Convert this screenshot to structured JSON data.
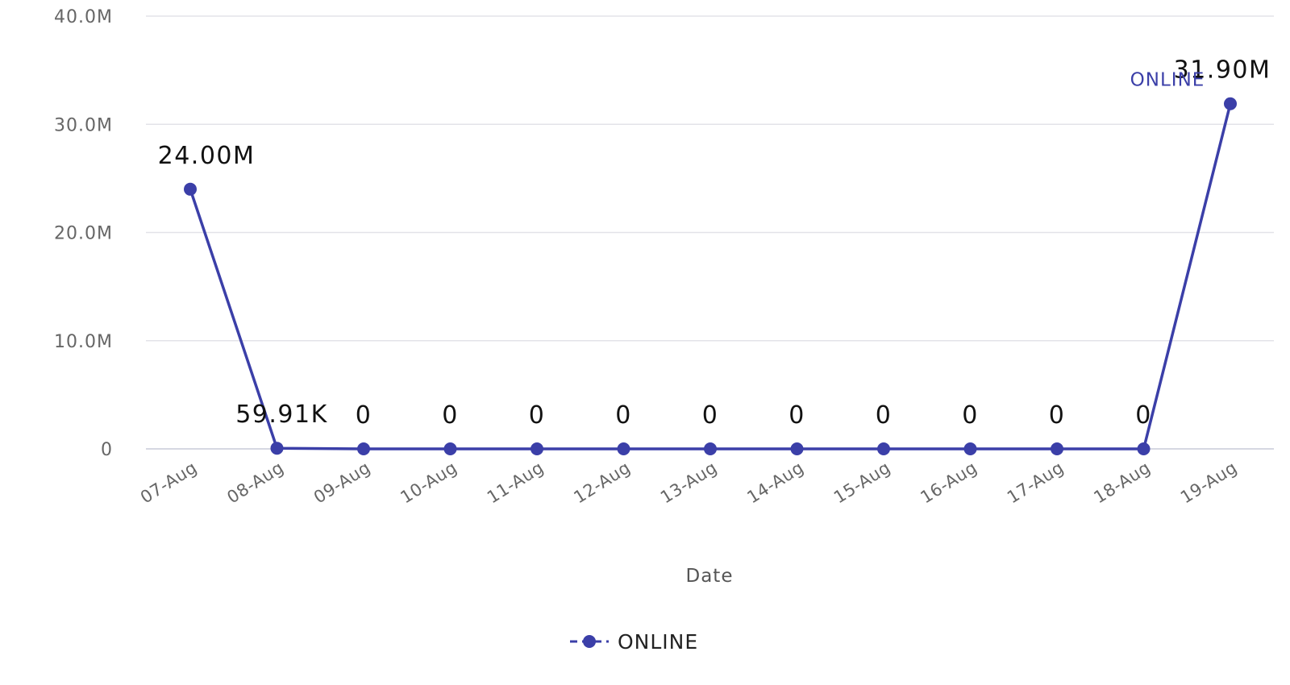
{
  "colors": {
    "series": "#3b3fa8",
    "grid": "#e3e3e8",
    "tick_text": "#666666",
    "label_text": "#111111"
  },
  "chart_data": {
    "type": "line",
    "xlabel": "Date",
    "ylabel": "",
    "ylim": [
      0,
      40000000
    ],
    "y_ticks": [
      {
        "value": 0,
        "label": "0"
      },
      {
        "value": 10000000,
        "label": "10.0M"
      },
      {
        "value": 20000000,
        "label": "20.0M"
      },
      {
        "value": 30000000,
        "label": "30.0M"
      },
      {
        "value": 40000000,
        "label": "40.0M"
      }
    ],
    "categories": [
      "07-Aug",
      "08-Aug",
      "09-Aug",
      "10-Aug",
      "11-Aug",
      "12-Aug",
      "13-Aug",
      "14-Aug",
      "15-Aug",
      "16-Aug",
      "17-Aug",
      "18-Aug",
      "19-Aug"
    ],
    "grid": true,
    "legend_position": "bottom",
    "series": [
      {
        "name": "ONLINE",
        "values": [
          24000000,
          59910,
          0,
          0,
          0,
          0,
          0,
          0,
          0,
          0,
          0,
          0,
          31900000
        ],
        "data_labels": [
          "24.00M",
          "59.91K",
          "0",
          "0",
          "0",
          "0",
          "0",
          "0",
          "0",
          "0",
          "0",
          "0",
          "31.90M"
        ],
        "end_label": "ONLINE"
      }
    ]
  }
}
